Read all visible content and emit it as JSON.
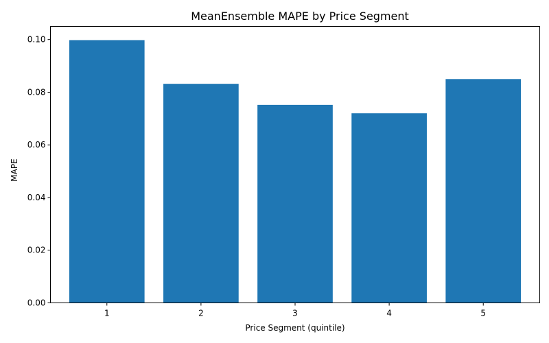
{
  "chart_data": {
    "type": "bar",
    "title": "MeanEnsemble MAPE by Price Segment",
    "xlabel": "Price Segment (quintile)",
    "ylabel": "MAPE",
    "categories": [
      "1",
      "2",
      "3",
      "4",
      "5"
    ],
    "values": [
      0.0998,
      0.0832,
      0.0752,
      0.072,
      0.085
    ],
    "ylim": [
      0,
      0.105
    ],
    "yticks": [
      0.0,
      0.02,
      0.04,
      0.06,
      0.08,
      0.1
    ],
    "ytick_labels": [
      "0.00",
      "0.02",
      "0.04",
      "0.06",
      "0.08",
      "0.10"
    ],
    "bar_color": "#1f77b4",
    "grid": false,
    "legend": "none"
  }
}
